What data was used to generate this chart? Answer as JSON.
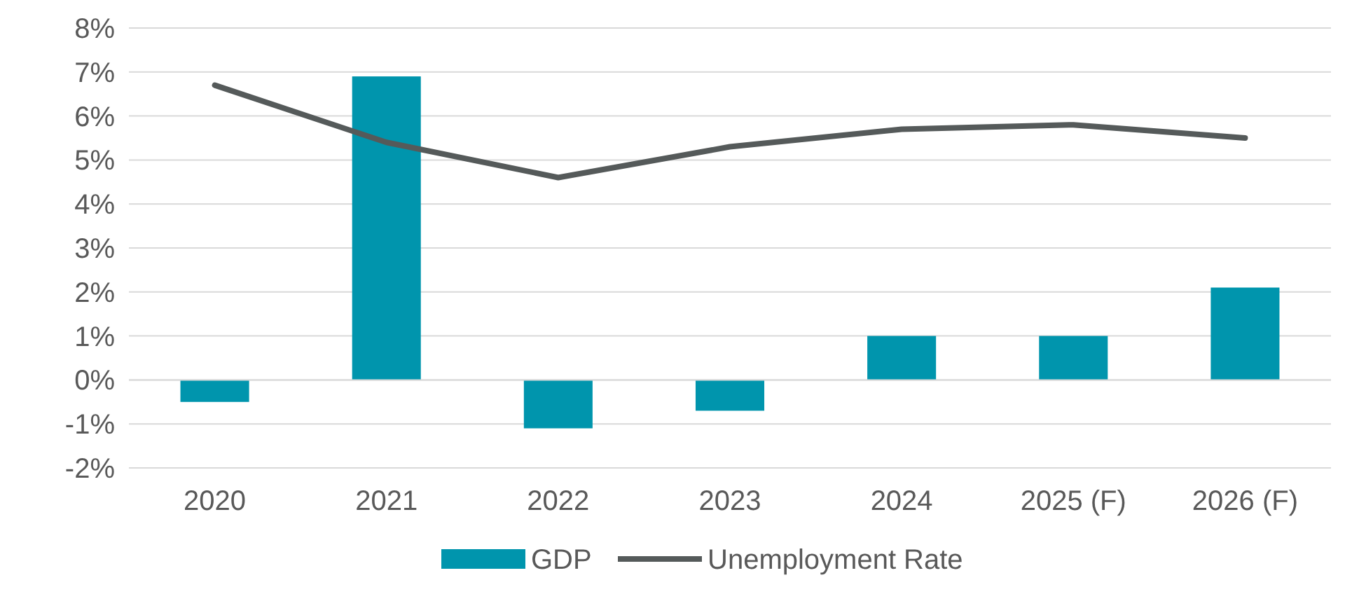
{
  "chart_data": {
    "type": "bar",
    "categories": [
      "2020",
      "2021",
      "2022",
      "2023",
      "2024",
      "2025 (F)",
      "2026 (F)"
    ],
    "series": [
      {
        "name": "GDP",
        "color": "#0095ad",
        "values": [
          -0.5,
          6.9,
          -1.1,
          -0.7,
          1.0,
          1.0,
          2.1
        ]
      },
      {
        "name": "Unemployment Rate",
        "type": "line",
        "color": "#555a5a",
        "values": [
          6.7,
          5.4,
          4.6,
          5.3,
          5.7,
          5.8,
          5.5
        ]
      }
    ],
    "ylim": [
      -2,
      8
    ],
    "yticks": [
      {
        "value": -2,
        "label": "-2%"
      },
      {
        "value": -1,
        "label": "-1%"
      },
      {
        "value": 0,
        "label": "0%"
      },
      {
        "value": 1,
        "label": "1%"
      },
      {
        "value": 2,
        "label": "2%"
      },
      {
        "value": 3,
        "label": "3%"
      },
      {
        "value": 4,
        "label": "4%"
      },
      {
        "value": 5,
        "label": "5%"
      },
      {
        "value": 6,
        "label": "6%"
      },
      {
        "value": 7,
        "label": "7%"
      },
      {
        "value": 8,
        "label": "8%"
      }
    ],
    "grid": "y",
    "legend": "bottom",
    "marker": "none",
    "line_style": "solid"
  }
}
